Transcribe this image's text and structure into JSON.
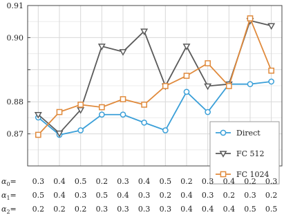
{
  "chart_data": {
    "type": "line",
    "x": [
      1,
      2,
      3,
      4,
      5,
      6,
      7,
      8,
      9,
      10,
      11,
      12
    ],
    "ylim": [
      0.86,
      0.91
    ],
    "yticks": [
      0.87,
      0.88,
      0.89,
      0.9,
      0.91
    ],
    "ytick_labels": [
      "0.87",
      "0.88",
      "",
      "0.90",
      "0.91"
    ],
    "grid": true,
    "legend_position": "lower-right",
    "series": [
      {
        "name": "Direct",
        "color": "#3a9fd8",
        "marker": "circle",
        "values": [
          0.8751,
          0.8697,
          0.8711,
          0.876,
          0.876,
          0.8735,
          0.8711,
          0.8831,
          0.8768,
          0.8855,
          0.8855,
          0.8863
        ]
      },
      {
        "name": "FC 512",
        "color": "#5a5a5a",
        "marker": "triangle-down",
        "values": [
          0.876,
          0.8702,
          0.8775,
          0.8973,
          0.8956,
          0.902,
          0.8849,
          0.8973,
          0.8849,
          0.8855,
          0.9053,
          0.9037
        ]
      },
      {
        "name": "FC 1024",
        "color": "#e08a3c",
        "marker": "square",
        "values": [
          0.8697,
          0.8768,
          0.8791,
          0.8783,
          0.8808,
          0.8791,
          0.8849,
          0.8881,
          0.892,
          0.8849,
          0.906,
          0.8897
        ]
      }
    ],
    "alpha_rows": [
      {
        "label": "α0=",
        "sym": "α",
        "sub": "0",
        "values": [
          "0.3",
          "0.4",
          "0.5",
          "0.2",
          "0.3",
          "0.4",
          "0.5",
          "0.2",
          "0.3",
          "0.4",
          "0.2",
          "0.3"
        ]
      },
      {
        "label": "α1=",
        "sym": "α",
        "sub": "1",
        "values": [
          "0.5",
          "0.4",
          "0.3",
          "0.5",
          "0.4",
          "0.3",
          "0.2",
          "0.4",
          "0.3",
          "0.2",
          "0.3",
          "0.2"
        ]
      },
      {
        "label": "α2=",
        "sym": "α",
        "sub": "2",
        "values": [
          "0.2",
          "0.2",
          "0.2",
          "0.3",
          "0.3",
          "0.3",
          "0.3",
          "0.4",
          "0.4",
          "0.4",
          "0.5",
          "0.5"
        ]
      }
    ]
  }
}
